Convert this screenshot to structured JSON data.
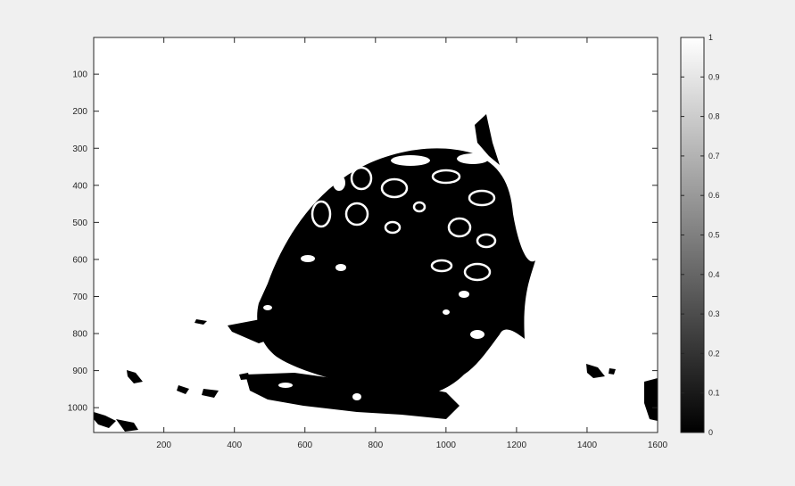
{
  "figure": {
    "background": "#f0f0f0",
    "image_colormap": "gray",
    "colormap_colors": [
      "#000000",
      "#ffffff"
    ]
  },
  "chart_data": {
    "type": "heatmap",
    "title": "",
    "xlabel": "",
    "ylabel": "",
    "xlim": [
      1,
      1600
    ],
    "ylim": [
      1,
      1067
    ],
    "y_reversed": true,
    "x_ticks": [
      {
        "value": 200,
        "label": "200"
      },
      {
        "value": 400,
        "label": "400"
      },
      {
        "value": 600,
        "label": "600"
      },
      {
        "value": 800,
        "label": "800"
      },
      {
        "value": 1000,
        "label": "1000"
      },
      {
        "value": 1200,
        "label": "1200"
      },
      {
        "value": 1400,
        "label": "1400"
      },
      {
        "value": 1600,
        "label": "1600"
      }
    ],
    "y_ticks": [
      {
        "value": 100,
        "label": "100"
      },
      {
        "value": 200,
        "label": "200"
      },
      {
        "value": 300,
        "label": "300"
      },
      {
        "value": 400,
        "label": "400"
      },
      {
        "value": 500,
        "label": "500"
      },
      {
        "value": 600,
        "label": "600"
      },
      {
        "value": 700,
        "label": "700"
      },
      {
        "value": 800,
        "label": "800"
      },
      {
        "value": 900,
        "label": "900"
      },
      {
        "value": 1000,
        "label": "1000"
      }
    ],
    "colorbar": {
      "range": [
        0,
        1
      ],
      "ticks": [
        {
          "value": 0,
          "label": "0"
        },
        {
          "value": 0.1,
          "label": "0.1"
        },
        {
          "value": 0.2,
          "label": "0.2"
        },
        {
          "value": 0.3,
          "label": "0.3"
        },
        {
          "value": 0.4,
          "label": "0.4"
        },
        {
          "value": 0.5,
          "label": "0.5"
        },
        {
          "value": 0.6,
          "label": "0.6"
        },
        {
          "value": 0.7,
          "label": "0.7"
        },
        {
          "value": 0.8,
          "label": "0.8"
        },
        {
          "value": 0.9,
          "label": "0.9"
        },
        {
          "value": 1,
          "label": "1"
        }
      ]
    },
    "image_description_values": "binary image (values 0 and 1): black blob shaped like a sphere with ring spots on white background"
  }
}
